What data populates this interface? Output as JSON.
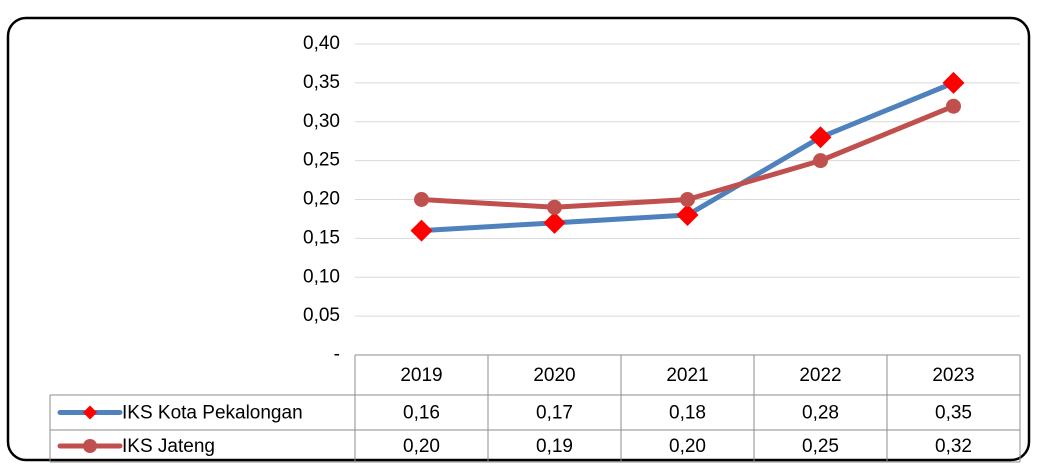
{
  "chart_data": {
    "type": "line",
    "categories": [
      "2019",
      "2020",
      "2021",
      "2022",
      "2023"
    ],
    "series": [
      {
        "name": "IKS Kota Pekalongan",
        "color": "#4f81bd",
        "marker": "diamond",
        "marker_color": "#ff0000",
        "values": [
          0.16,
          0.17,
          0.18,
          0.28,
          0.35
        ],
        "value_labels": [
          "0,16",
          "0,17",
          "0,18",
          "0,28",
          "0,35"
        ]
      },
      {
        "name": "IKS Jateng",
        "color": "#c0504d",
        "marker": "circle",
        "marker_color": "#c0504d",
        "values": [
          0.2,
          0.19,
          0.2,
          0.25,
          0.32
        ],
        "value_labels": [
          "0,20",
          "0,19",
          "0,20",
          "0,25",
          "0,32"
        ]
      }
    ],
    "ylim": [
      0,
      0.4
    ],
    "yticks": [
      {
        "value": 0,
        "label": "-"
      },
      {
        "value": 0.05,
        "label": "0,05"
      },
      {
        "value": 0.1,
        "label": "0,10"
      },
      {
        "value": 0.15,
        "label": "0,15"
      },
      {
        "value": 0.2,
        "label": "0,20"
      },
      {
        "value": 0.25,
        "label": "0,25"
      },
      {
        "value": 0.3,
        "label": "0,30"
      },
      {
        "value": 0.35,
        "label": "0,35"
      },
      {
        "value": 0.4,
        "label": "0,40"
      }
    ],
    "grid": true,
    "legend": "table"
  }
}
